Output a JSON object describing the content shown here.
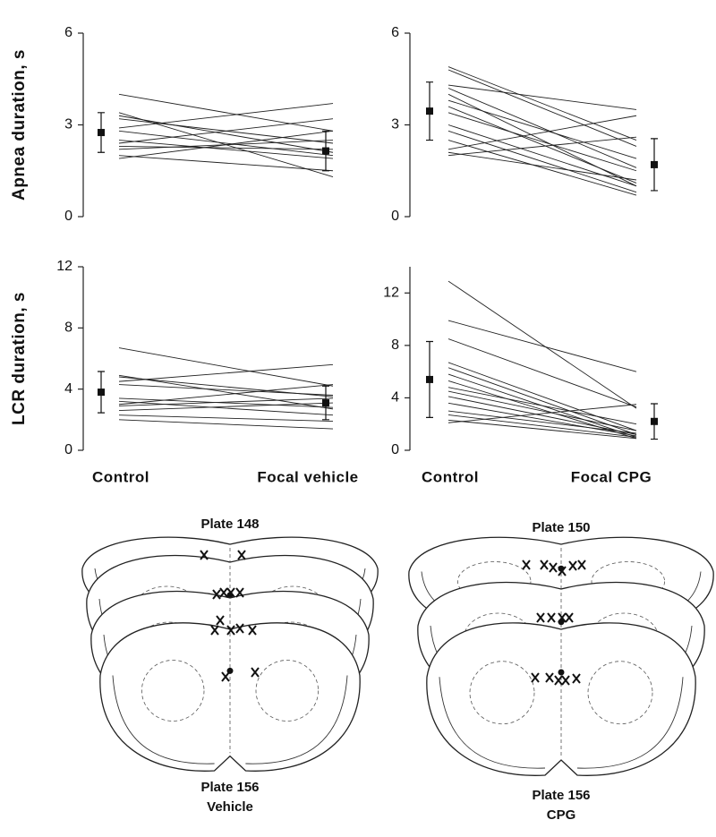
{
  "chart_data": [
    {
      "type": "paired-line",
      "y_label": "Apnea duration, s",
      "ylim": [
        0,
        6
      ],
      "yticks": [
        0,
        3,
        6
      ],
      "color": "#222222",
      "series": [
        {
          "values": [
            4.0,
            2.8
          ]
        },
        {
          "values": [
            3.4,
            1.3
          ]
        },
        {
          "values": [
            3.3,
            2.1
          ]
        },
        {
          "values": [
            3.2,
            2.4
          ]
        },
        {
          "values": [
            2.9,
            3.7
          ]
        },
        {
          "values": [
            2.8,
            2.0
          ]
        },
        {
          "values": [
            2.5,
            1.9
          ]
        },
        {
          "values": [
            2.4,
            3.2
          ]
        },
        {
          "values": [
            2.3,
            2.2
          ]
        },
        {
          "values": [
            2.2,
            2.5
          ]
        },
        {
          "values": [
            2.0,
            1.5
          ]
        },
        {
          "values": [
            1.9,
            2.8
          ]
        }
      ],
      "mean": {
        "values": [
          2.75,
          2.15
        ],
        "errors": [
          0.65,
          0.65
        ]
      }
    },
    {
      "type": "paired-line",
      "ylim": [
        0,
        6
      ],
      "yticks": [
        0,
        3,
        6
      ],
      "color": "#222222",
      "series": [
        {
          "values": [
            4.9,
            2.5
          ]
        },
        {
          "values": [
            4.8,
            2.3
          ]
        },
        {
          "values": [
            4.3,
            3.5
          ]
        },
        {
          "values": [
            4.2,
            1.6
          ]
        },
        {
          "values": [
            4.0,
            1.0
          ]
        },
        {
          "values": [
            3.8,
            1.9
          ]
        },
        {
          "values": [
            3.6,
            1.1
          ]
        },
        {
          "values": [
            3.4,
            1.5
          ]
        },
        {
          "values": [
            3.0,
            1.0
          ]
        },
        {
          "values": [
            2.8,
            0.8
          ]
        },
        {
          "values": [
            2.5,
            0.7
          ]
        },
        {
          "values": [
            2.2,
            3.3
          ]
        },
        {
          "values": [
            2.0,
            2.6
          ]
        },
        {
          "values": [
            2.1,
            1.2
          ]
        }
      ],
      "mean": {
        "values": [
          3.45,
          1.7
        ],
        "errors": [
          0.95,
          0.85
        ]
      }
    },
    {
      "type": "paired-line",
      "y_label": "LCR duration, s",
      "ylim": [
        0,
        12
      ],
      "yticks": [
        0,
        4,
        8,
        12
      ],
      "color": "#222222",
      "categories": [
        "Control",
        "Focal vehicle"
      ],
      "series": [
        {
          "values": [
            6.7,
            4.2
          ]
        },
        {
          "values": [
            4.9,
            2.7
          ]
        },
        {
          "values": [
            4.8,
            3.5
          ]
        },
        {
          "values": [
            4.5,
            5.6
          ]
        },
        {
          "values": [
            4.3,
            3.6
          ]
        },
        {
          "values": [
            3.4,
            2.8
          ]
        },
        {
          "values": [
            3.2,
            2.3
          ]
        },
        {
          "values": [
            3.0,
            4.3
          ]
        },
        {
          "values": [
            2.9,
            3.4
          ]
        },
        {
          "values": [
            2.6,
            3.1
          ]
        },
        {
          "values": [
            2.3,
            1.9
          ]
        },
        {
          "values": [
            2.0,
            1.4
          ]
        }
      ],
      "mean": {
        "values": [
          3.8,
          3.1
        ],
        "errors": [
          1.35,
          1.1
        ]
      }
    },
    {
      "type": "paired-line",
      "ylim": [
        0,
        14
      ],
      "yticks": [
        0,
        4,
        8,
        12
      ],
      "color": "#222222",
      "categories": [
        "Control",
        "Focal CPG"
      ],
      "series": [
        {
          "values": [
            12.9,
            3.2
          ]
        },
        {
          "values": [
            9.9,
            6.0
          ]
        },
        {
          "values": [
            8.5,
            3.3
          ]
        },
        {
          "values": [
            6.7,
            1.5
          ]
        },
        {
          "values": [
            6.3,
            1.2
          ]
        },
        {
          "values": [
            5.8,
            1.0
          ]
        },
        {
          "values": [
            5.3,
            0.9
          ]
        },
        {
          "values": [
            4.8,
            2.0
          ]
        },
        {
          "values": [
            4.5,
            1.5
          ]
        },
        {
          "values": [
            4.1,
            1.2
          ]
        },
        {
          "values": [
            3.6,
            1.1
          ]
        },
        {
          "values": [
            3.0,
            1.3
          ]
        },
        {
          "values": [
            2.7,
            1.0
          ]
        },
        {
          "values": [
            2.3,
            0.9
          ]
        },
        {
          "values": [
            2.1,
            3.5
          ]
        }
      ],
      "mean": {
        "values": [
          5.4,
          2.2
        ],
        "errors": [
          2.9,
          1.35
        ]
      }
    }
  ],
  "diagrams": [
    {
      "top_label": "Plate 148",
      "bottom_label": "Plate 156",
      "group": "Vehicle"
    },
    {
      "top_label": "Plate 150",
      "bottom_label": "Plate 156",
      "group": "CPG"
    }
  ]
}
